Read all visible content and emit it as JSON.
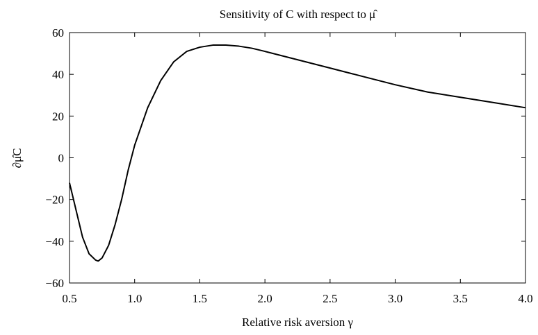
{
  "chart_data": {
    "type": "line",
    "title": "Sensitivity of C with respect to μ̂",
    "xlabel": "Relative risk aversion γ",
    "ylabel": "∂μ̂C",
    "x": [
      0.5,
      0.55,
      0.6,
      0.65,
      0.7,
      0.72,
      0.75,
      0.8,
      0.85,
      0.9,
      0.95,
      1.0,
      1.1,
      1.2,
      1.3,
      1.4,
      1.5,
      1.6,
      1.7,
      1.8,
      1.9,
      2.0,
      2.25,
      2.5,
      2.75,
      3.0,
      3.25,
      3.5,
      3.75,
      4.0
    ],
    "series": [
      {
        "name": "sensitivity",
        "color": "#000000",
        "values": [
          -12,
          -25,
          -38,
          -46,
          -49,
          -49.5,
          -48,
          -42,
          -32,
          -20,
          -6,
          6,
          24,
          37,
          46,
          51,
          53,
          54,
          54,
          53.5,
          52.5,
          51,
          47,
          43,
          39,
          35,
          31.5,
          29,
          26.5,
          24
        ]
      }
    ],
    "xlim": [
      0.5,
      4.0
    ],
    "xticks": [
      0.5,
      {
        "value": 1,
        "label": "1.0"
      },
      1.5,
      {
        "value": 2,
        "label": "2.0"
      },
      2.5,
      {
        "value": 3,
        "label": "3.0"
      },
      3.5,
      {
        "value": 4,
        "label": "4.0"
      }
    ],
    "ylim": [
      -60,
      60
    ],
    "yticks": [
      {
        "value": -60,
        "label": "−60"
      },
      {
        "value": -40,
        "label": "−40"
      },
      {
        "value": -20,
        "label": "−20"
      },
      0,
      20,
      40,
      60
    ]
  }
}
